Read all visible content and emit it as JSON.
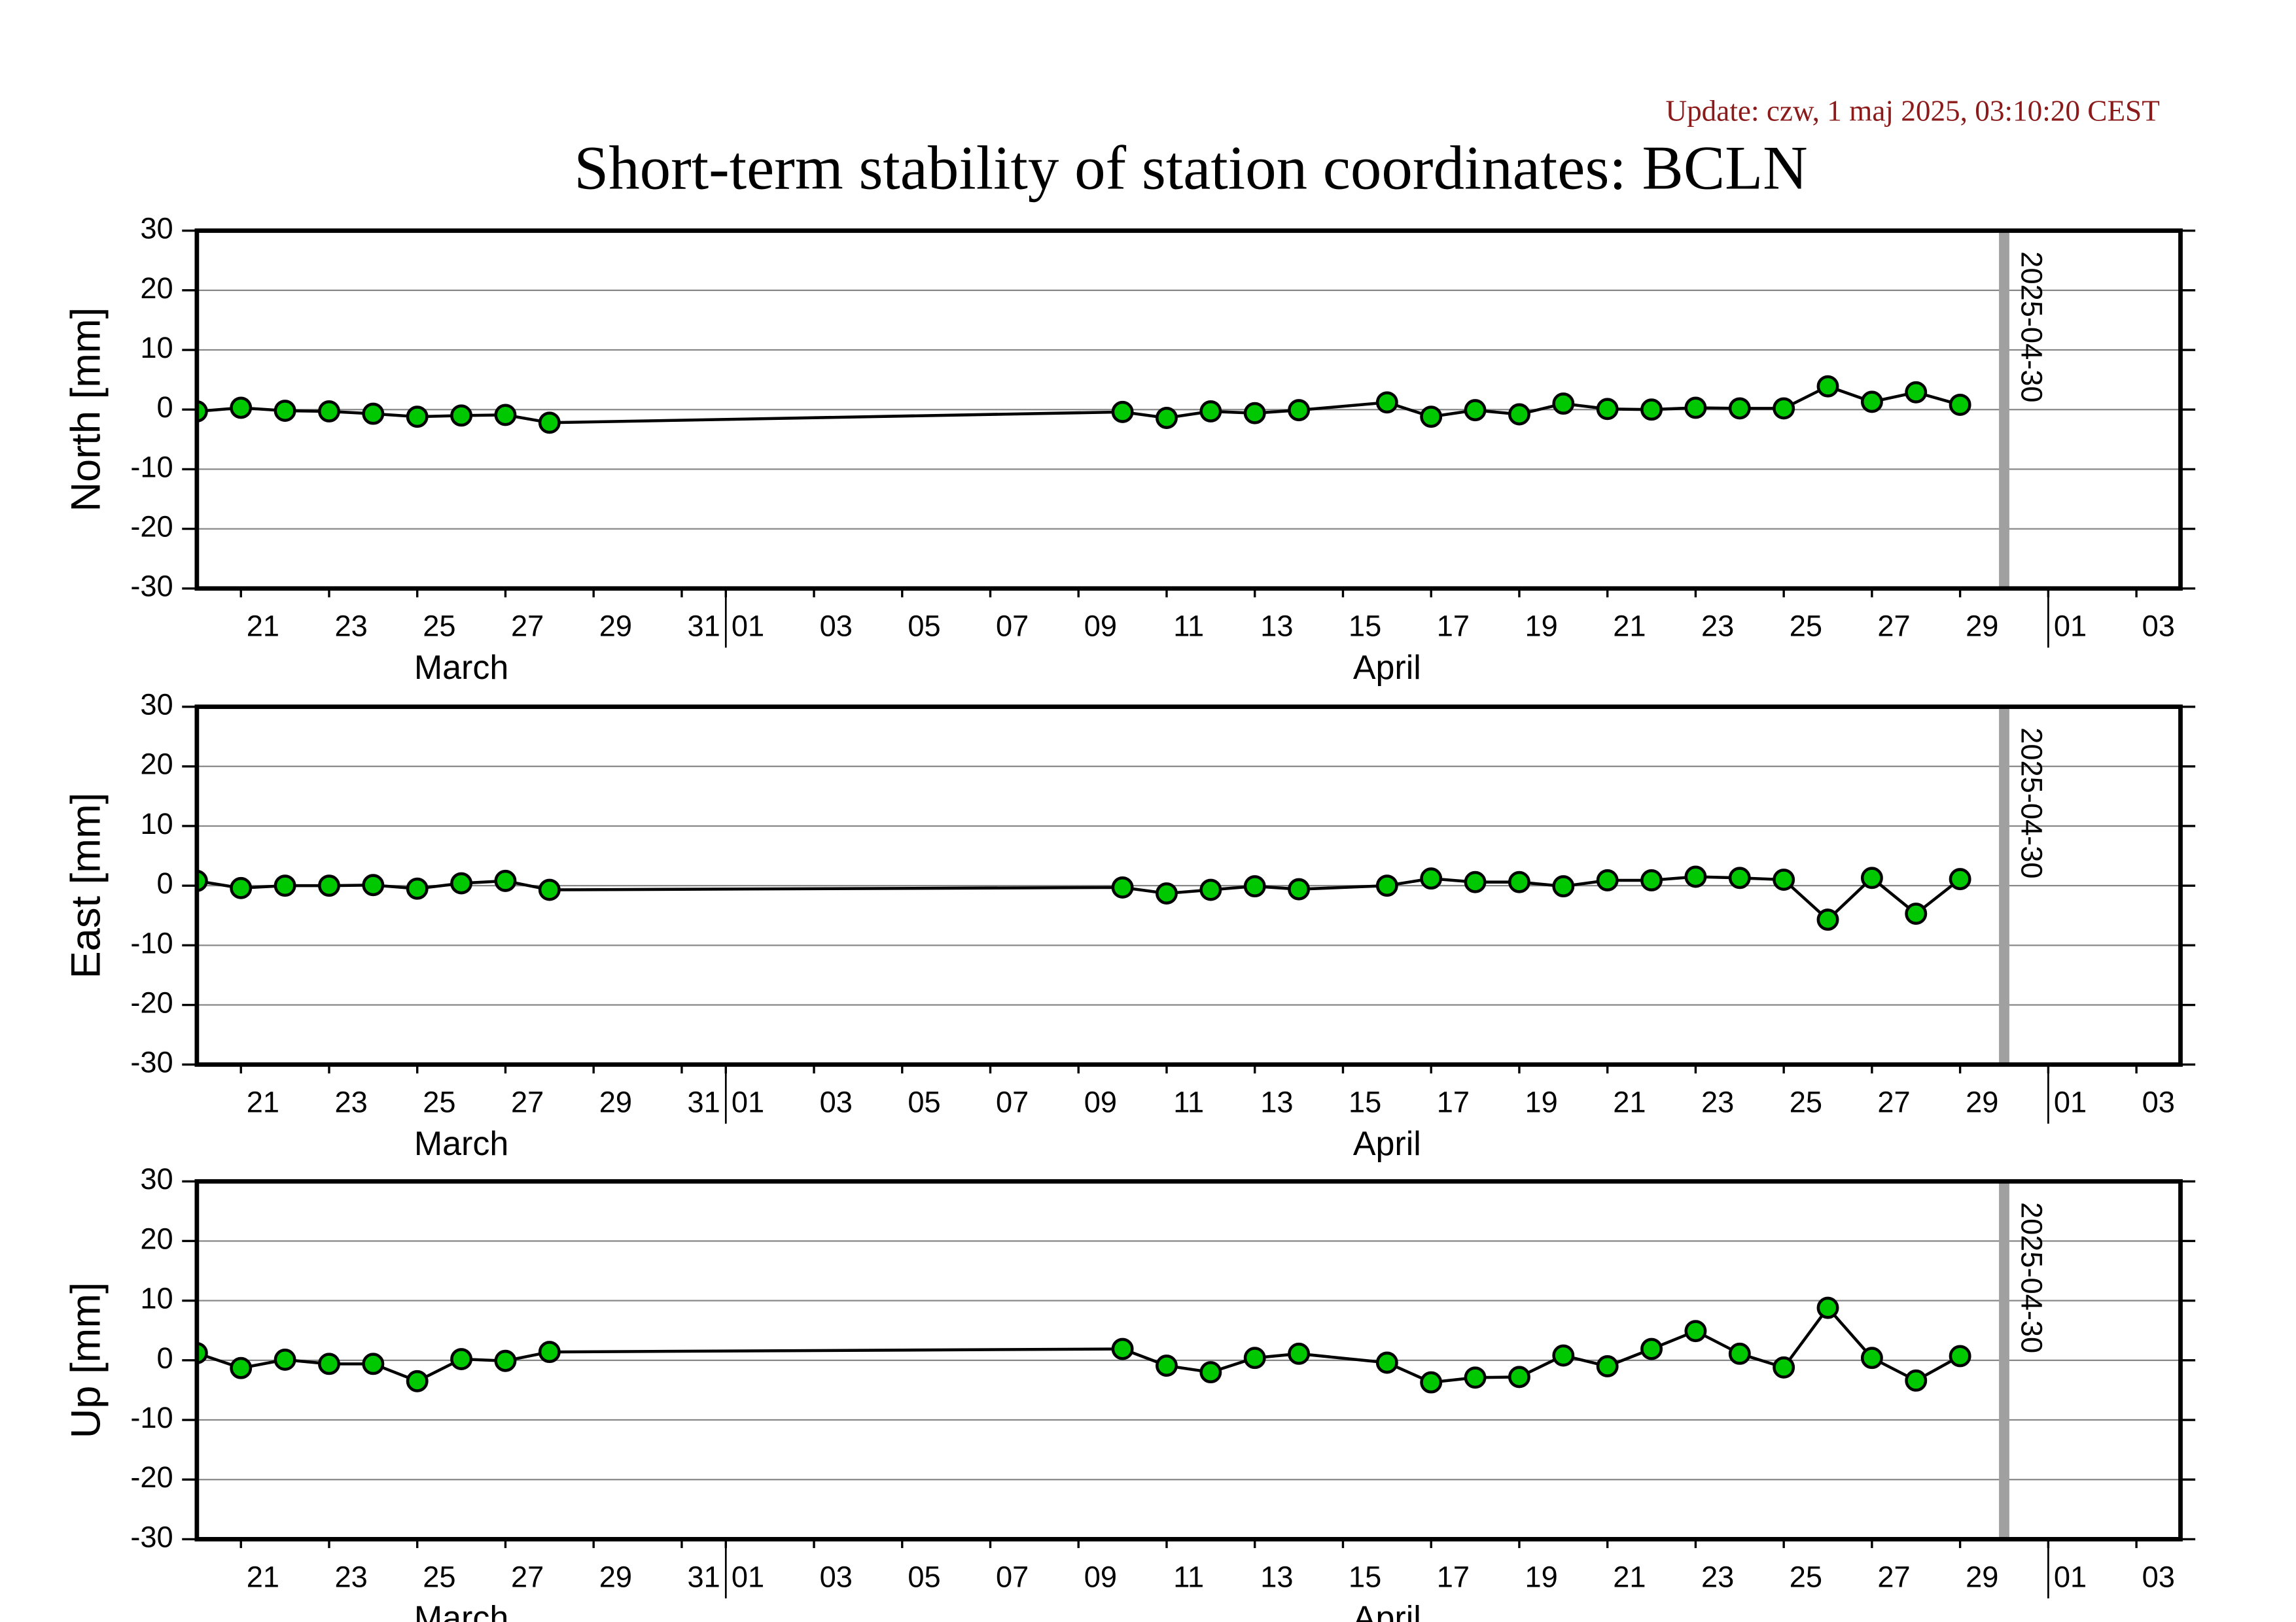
{
  "title": "Short-term stability of station coordinates: BCLN",
  "update": "Update: czw, 1 maj 2025, 03:10:20 CEST",
  "chart_data": [
    {
      "type": "line",
      "y_label": "North [mm]",
      "x": [
        "2025-03-20",
        "2025-03-21",
        "2025-03-22",
        "2025-03-23",
        "2025-03-24",
        "2025-03-25",
        "2025-03-26",
        "2025-03-27",
        "2025-03-28",
        "2025-04-10",
        "2025-04-11",
        "2025-04-12",
        "2025-04-13",
        "2025-04-14",
        "2025-04-16",
        "2025-04-17",
        "2025-04-18",
        "2025-04-19",
        "2025-04-20",
        "2025-04-21",
        "2025-04-22",
        "2025-04-23",
        "2025-04-24",
        "2025-04-25",
        "2025-04-26",
        "2025-04-27",
        "2025-04-28",
        "2025-04-29"
      ],
      "series": [
        {
          "color": "#00c800",
          "line_color": "#000000",
          "values": [
            -0.3,
            0.3,
            -0.2,
            -0.3,
            -0.7,
            -1.2,
            -1.0,
            -0.9,
            -2.2,
            -0.4,
            -1.4,
            -0.3,
            -0.6,
            -0.1,
            1.2,
            -1.2,
            -0.1,
            -0.8,
            1.0,
            0.1,
            0.0,
            0.3,
            0.2,
            0.2,
            3.9,
            1.3,
            2.9,
            0.8
          ]
        }
      ],
      "xlim": [
        "2025-03-20",
        "2025-05-04"
      ],
      "ylim": [
        -30,
        30
      ],
      "yticks": [
        -30,
        -20,
        -10,
        0,
        10,
        20,
        30
      ],
      "grid": true,
      "xticks": [
        {
          "value": "2025-03-21",
          "label": "21"
        },
        {
          "value": "2025-03-23",
          "label": "23"
        },
        {
          "value": "2025-03-25",
          "label": "25"
        },
        {
          "value": "2025-03-27",
          "label": "27"
        },
        {
          "value": "2025-03-29",
          "label": "29"
        },
        {
          "value": "2025-03-31",
          "label": "31"
        },
        {
          "value": "2025-04-01",
          "label": "01"
        },
        {
          "value": "2025-04-03",
          "label": "03"
        },
        {
          "value": "2025-04-05",
          "label": "05"
        },
        {
          "value": "2025-04-07",
          "label": "07"
        },
        {
          "value": "2025-04-09",
          "label": "09"
        },
        {
          "value": "2025-04-11",
          "label": "11"
        },
        {
          "value": "2025-04-13",
          "label": "13"
        },
        {
          "value": "2025-04-15",
          "label": "15"
        },
        {
          "value": "2025-04-17",
          "label": "17"
        },
        {
          "value": "2025-04-19",
          "label": "19"
        },
        {
          "value": "2025-04-21",
          "label": "21"
        },
        {
          "value": "2025-04-23",
          "label": "23"
        },
        {
          "value": "2025-04-25",
          "label": "25"
        },
        {
          "value": "2025-04-27",
          "label": "27"
        },
        {
          "value": "2025-04-29",
          "label": "29"
        },
        {
          "value": "2025-05-01",
          "label": "01"
        },
        {
          "value": "2025-05-03",
          "label": "03"
        }
      ],
      "month_labels": [
        {
          "value": "2025-03",
          "label": "March"
        },
        {
          "value": "2025-04",
          "label": "April"
        }
      ],
      "month_ticks": [
        "2025-04-01",
        "2025-05-01"
      ],
      "marker": {
        "value": "2025-04-30",
        "label": "2025-04-30",
        "color": "#a0a0a0"
      }
    },
    {
      "type": "line",
      "y_label": "East [mm]",
      "x": [
        "2025-03-20",
        "2025-03-21",
        "2025-03-22",
        "2025-03-23",
        "2025-03-24",
        "2025-03-25",
        "2025-03-26",
        "2025-03-27",
        "2025-03-28",
        "2025-04-10",
        "2025-04-11",
        "2025-04-12",
        "2025-04-13",
        "2025-04-14",
        "2025-04-16",
        "2025-04-17",
        "2025-04-18",
        "2025-04-19",
        "2025-04-20",
        "2025-04-21",
        "2025-04-22",
        "2025-04-23",
        "2025-04-24",
        "2025-04-25",
        "2025-04-26",
        "2025-04-27",
        "2025-04-28",
        "2025-04-29"
      ],
      "series": [
        {
          "color": "#00c800",
          "line_color": "#000000",
          "values": [
            0.8,
            -0.4,
            0.0,
            0.0,
            0.1,
            -0.5,
            0.4,
            0.8,
            -0.7,
            -0.3,
            -1.3,
            -0.7,
            -0.1,
            -0.6,
            0.0,
            1.2,
            0.6,
            0.6,
            -0.1,
            0.9,
            0.9,
            1.5,
            1.3,
            1.0,
            -5.7,
            1.3,
            -4.7,
            1.1
          ]
        }
      ],
      "xlim": [
        "2025-03-20",
        "2025-05-04"
      ],
      "ylim": [
        -30,
        30
      ],
      "yticks": [
        -30,
        -20,
        -10,
        0,
        10,
        20,
        30
      ],
      "grid": true,
      "xticks": [
        {
          "value": "2025-03-21",
          "label": "21"
        },
        {
          "value": "2025-03-23",
          "label": "23"
        },
        {
          "value": "2025-03-25",
          "label": "25"
        },
        {
          "value": "2025-03-27",
          "label": "27"
        },
        {
          "value": "2025-03-29",
          "label": "29"
        },
        {
          "value": "2025-03-31",
          "label": "31"
        },
        {
          "value": "2025-04-01",
          "label": "01"
        },
        {
          "value": "2025-04-03",
          "label": "03"
        },
        {
          "value": "2025-04-05",
          "label": "05"
        },
        {
          "value": "2025-04-07",
          "label": "07"
        },
        {
          "value": "2025-04-09",
          "label": "09"
        },
        {
          "value": "2025-04-11",
          "label": "11"
        },
        {
          "value": "2025-04-13",
          "label": "13"
        },
        {
          "value": "2025-04-15",
          "label": "15"
        },
        {
          "value": "2025-04-17",
          "label": "17"
        },
        {
          "value": "2025-04-19",
          "label": "19"
        },
        {
          "value": "2025-04-21",
          "label": "21"
        },
        {
          "value": "2025-04-23",
          "label": "23"
        },
        {
          "value": "2025-04-25",
          "label": "25"
        },
        {
          "value": "2025-04-27",
          "label": "27"
        },
        {
          "value": "2025-04-29",
          "label": "29"
        },
        {
          "value": "2025-05-01",
          "label": "01"
        },
        {
          "value": "2025-05-03",
          "label": "03"
        }
      ],
      "month_labels": [
        {
          "value": "2025-03",
          "label": "March"
        },
        {
          "value": "2025-04",
          "label": "April"
        }
      ],
      "month_ticks": [
        "2025-04-01",
        "2025-05-01"
      ],
      "marker": {
        "value": "2025-04-30",
        "label": "2025-04-30",
        "color": "#a0a0a0"
      }
    },
    {
      "type": "line",
      "y_label": "Up [mm]",
      "x": [
        "2025-03-20",
        "2025-03-21",
        "2025-03-22",
        "2025-03-23",
        "2025-03-24",
        "2025-03-25",
        "2025-03-26",
        "2025-03-27",
        "2025-03-28",
        "2025-04-10",
        "2025-04-11",
        "2025-04-12",
        "2025-04-13",
        "2025-04-14",
        "2025-04-16",
        "2025-04-17",
        "2025-04-18",
        "2025-04-19",
        "2025-04-20",
        "2025-04-21",
        "2025-04-22",
        "2025-04-23",
        "2025-04-24",
        "2025-04-25",
        "2025-04-26",
        "2025-04-27",
        "2025-04-28",
        "2025-04-29"
      ],
      "series": [
        {
          "color": "#00c800",
          "line_color": "#000000",
          "values": [
            1.2,
            -1.3,
            0.1,
            -0.6,
            -0.6,
            -3.5,
            0.2,
            -0.1,
            1.4,
            1.9,
            -0.9,
            -2.0,
            0.4,
            1.1,
            -0.4,
            -3.7,
            -2.9,
            -2.8,
            0.8,
            -1.0,
            1.9,
            4.9,
            1.1,
            -1.2,
            8.8,
            0.4,
            -3.4,
            0.7
          ]
        }
      ],
      "xlim": [
        "2025-03-20",
        "2025-05-04"
      ],
      "ylim": [
        -30,
        30
      ],
      "yticks": [
        -30,
        -20,
        -10,
        0,
        10,
        20,
        30
      ],
      "grid": true,
      "xticks": [
        {
          "value": "2025-03-21",
          "label": "21"
        },
        {
          "value": "2025-03-23",
          "label": "23"
        },
        {
          "value": "2025-03-25",
          "label": "25"
        },
        {
          "value": "2025-03-27",
          "label": "27"
        },
        {
          "value": "2025-03-29",
          "label": "29"
        },
        {
          "value": "2025-03-31",
          "label": "31"
        },
        {
          "value": "2025-04-01",
          "label": "01"
        },
        {
          "value": "2025-04-03",
          "label": "03"
        },
        {
          "value": "2025-04-05",
          "label": "05"
        },
        {
          "value": "2025-04-07",
          "label": "07"
        },
        {
          "value": "2025-04-09",
          "label": "09"
        },
        {
          "value": "2025-04-11",
          "label": "11"
        },
        {
          "value": "2025-04-13",
          "label": "13"
        },
        {
          "value": "2025-04-15",
          "label": "15"
        },
        {
          "value": "2025-04-17",
          "label": "17"
        },
        {
          "value": "2025-04-19",
          "label": "19"
        },
        {
          "value": "2025-04-21",
          "label": "21"
        },
        {
          "value": "2025-04-23",
          "label": "23"
        },
        {
          "value": "2025-04-25",
          "label": "25"
        },
        {
          "value": "2025-04-27",
          "label": "27"
        },
        {
          "value": "2025-04-29",
          "label": "29"
        },
        {
          "value": "2025-05-01",
          "label": "01"
        },
        {
          "value": "2025-05-03",
          "label": "03"
        }
      ],
      "month_labels": [
        {
          "value": "2025-03",
          "label": "March"
        },
        {
          "value": "2025-04",
          "label": "April"
        }
      ],
      "month_ticks": [
        "2025-04-01",
        "2025-05-01"
      ],
      "marker": {
        "value": "2025-04-30",
        "label": "2025-04-30",
        "color": "#a0a0a0"
      }
    }
  ]
}
